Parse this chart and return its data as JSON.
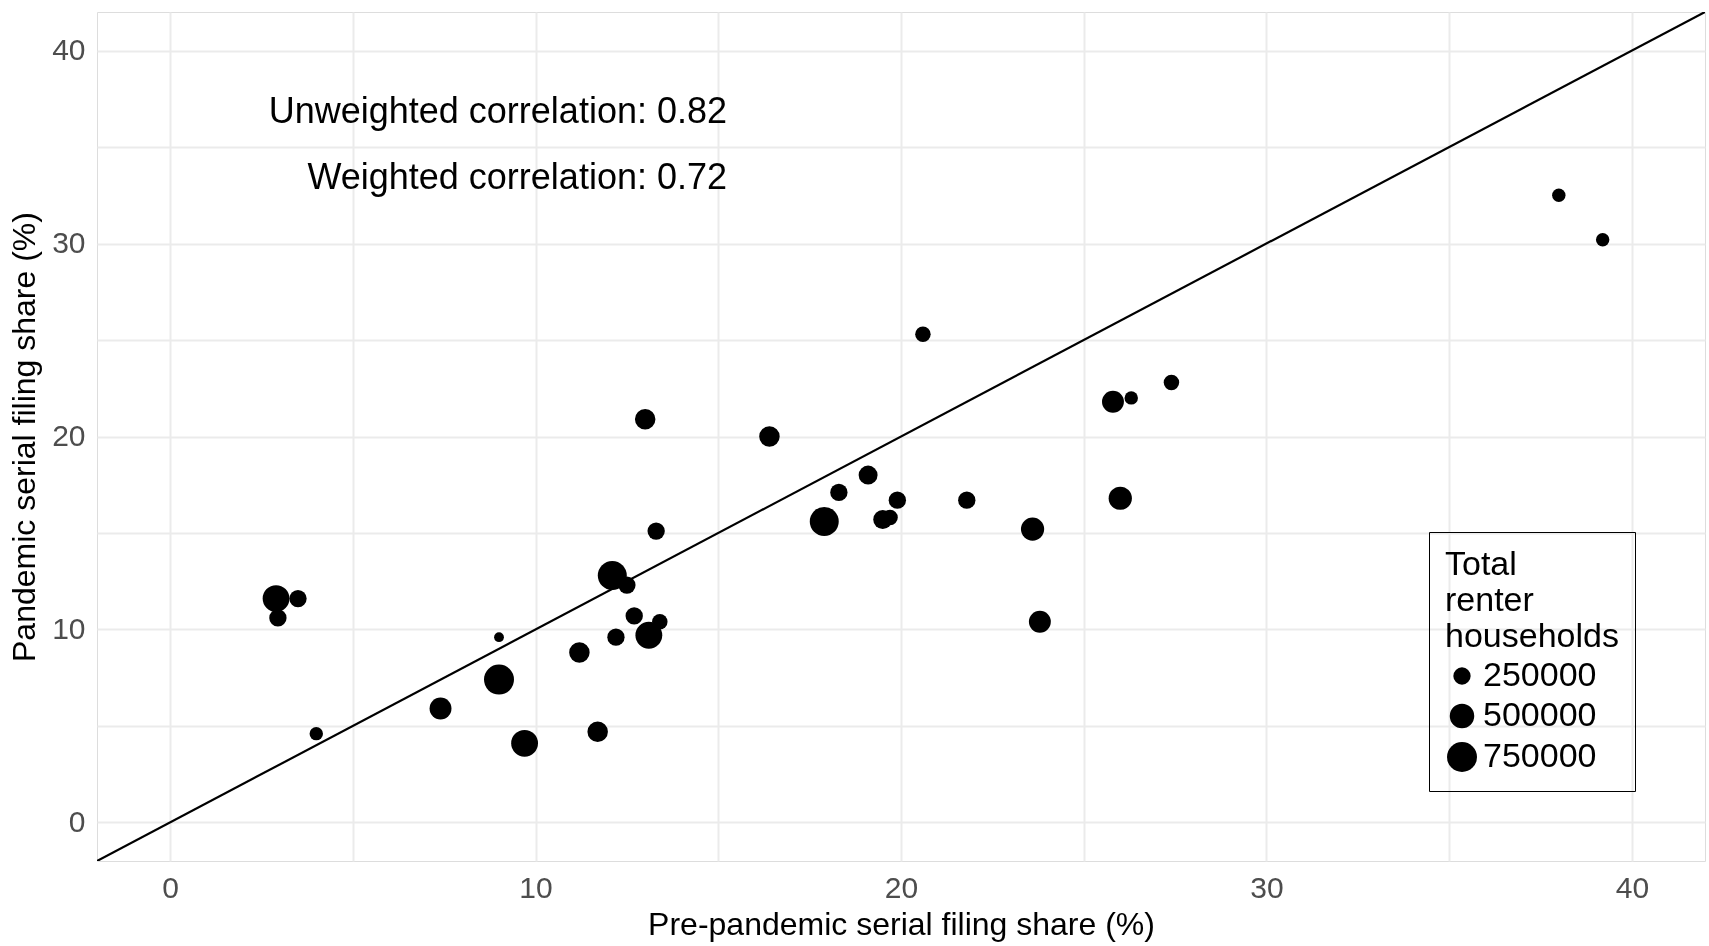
{
  "chart_data": {
    "type": "bubble",
    "xlabel": "Pre-pandemic serial filing share (%)",
    "ylabel": "Pandemic serial filing share (%)",
    "legend_title": "Total renter households",
    "annotations": [
      "Unweighted correlation: 0.82",
      "Weighted correlation: 0.72"
    ],
    "xlim": [
      -2,
      42
    ],
    "ylim": [
      -2,
      42
    ],
    "xticks": [
      0,
      {
        "value": 5,
        "label": null
      },
      10,
      {
        "value": 15,
        "label": null
      },
      20,
      {
        "value": 25,
        "label": null
      },
      30,
      {
        "value": 35,
        "label": null
      },
      40
    ],
    "yticks": [
      0,
      {
        "value": 5,
        "label": null
      },
      10,
      {
        "value": 15,
        "label": null
      },
      20,
      {
        "value": 25,
        "label": null
      },
      30,
      {
        "value": 35,
        "label": null
      },
      40
    ],
    "grid": true,
    "size_legend": [
      250000,
      500000,
      750000
    ],
    "series": [
      {
        "color": "#000000",
        "marker": "circle",
        "x": [
          2.9,
          3.5,
          2.95,
          4.0,
          7.4,
          9.0,
          9.0,
          9.7,
          11.2,
          11.7,
          12.1,
          12.2,
          12.5,
          12.7,
          13.1,
          13.4,
          13.0,
          13.3,
          16.4,
          17.9,
          18.3,
          19.1,
          19.5,
          19.7,
          19.9,
          20.6,
          21.8,
          23.6,
          23.8,
          25.8,
          26.0,
          26.3,
          27.4,
          38.0,
          39.2
        ],
        "values": [
          11.6,
          11.6,
          10.6,
          4.6,
          5.9,
          7.4,
          9.6,
          4.1,
          8.8,
          4.7,
          12.8,
          9.6,
          12.3,
          10.7,
          9.7,
          10.4,
          20.9,
          15.1,
          20.0,
          15.6,
          17.1,
          18.0,
          15.7,
          15.8,
          16.7,
          25.3,
          16.7,
          15.2,
          10.4,
          21.8,
          16.8,
          22.0,
          22.8,
          32.5,
          30.2
        ],
        "sizes": [
          600000,
          250000,
          250000,
          150000,
          400000,
          750000,
          80000,
          600000,
          350000,
          350000,
          700000,
          250000,
          250000,
          250000,
          600000,
          200000,
          350000,
          250000,
          350000,
          700000,
          250000,
          300000,
          300000,
          200000,
          250000,
          200000,
          250000,
          450000,
          400000,
          400000,
          450000,
          150000,
          200000,
          150000,
          150000
        ]
      },
      {
        "type": "line",
        "color": "#000000",
        "line_style": "solid",
        "x": [
          -2,
          42
        ],
        "values": [
          -2,
          42
        ]
      }
    ]
  }
}
